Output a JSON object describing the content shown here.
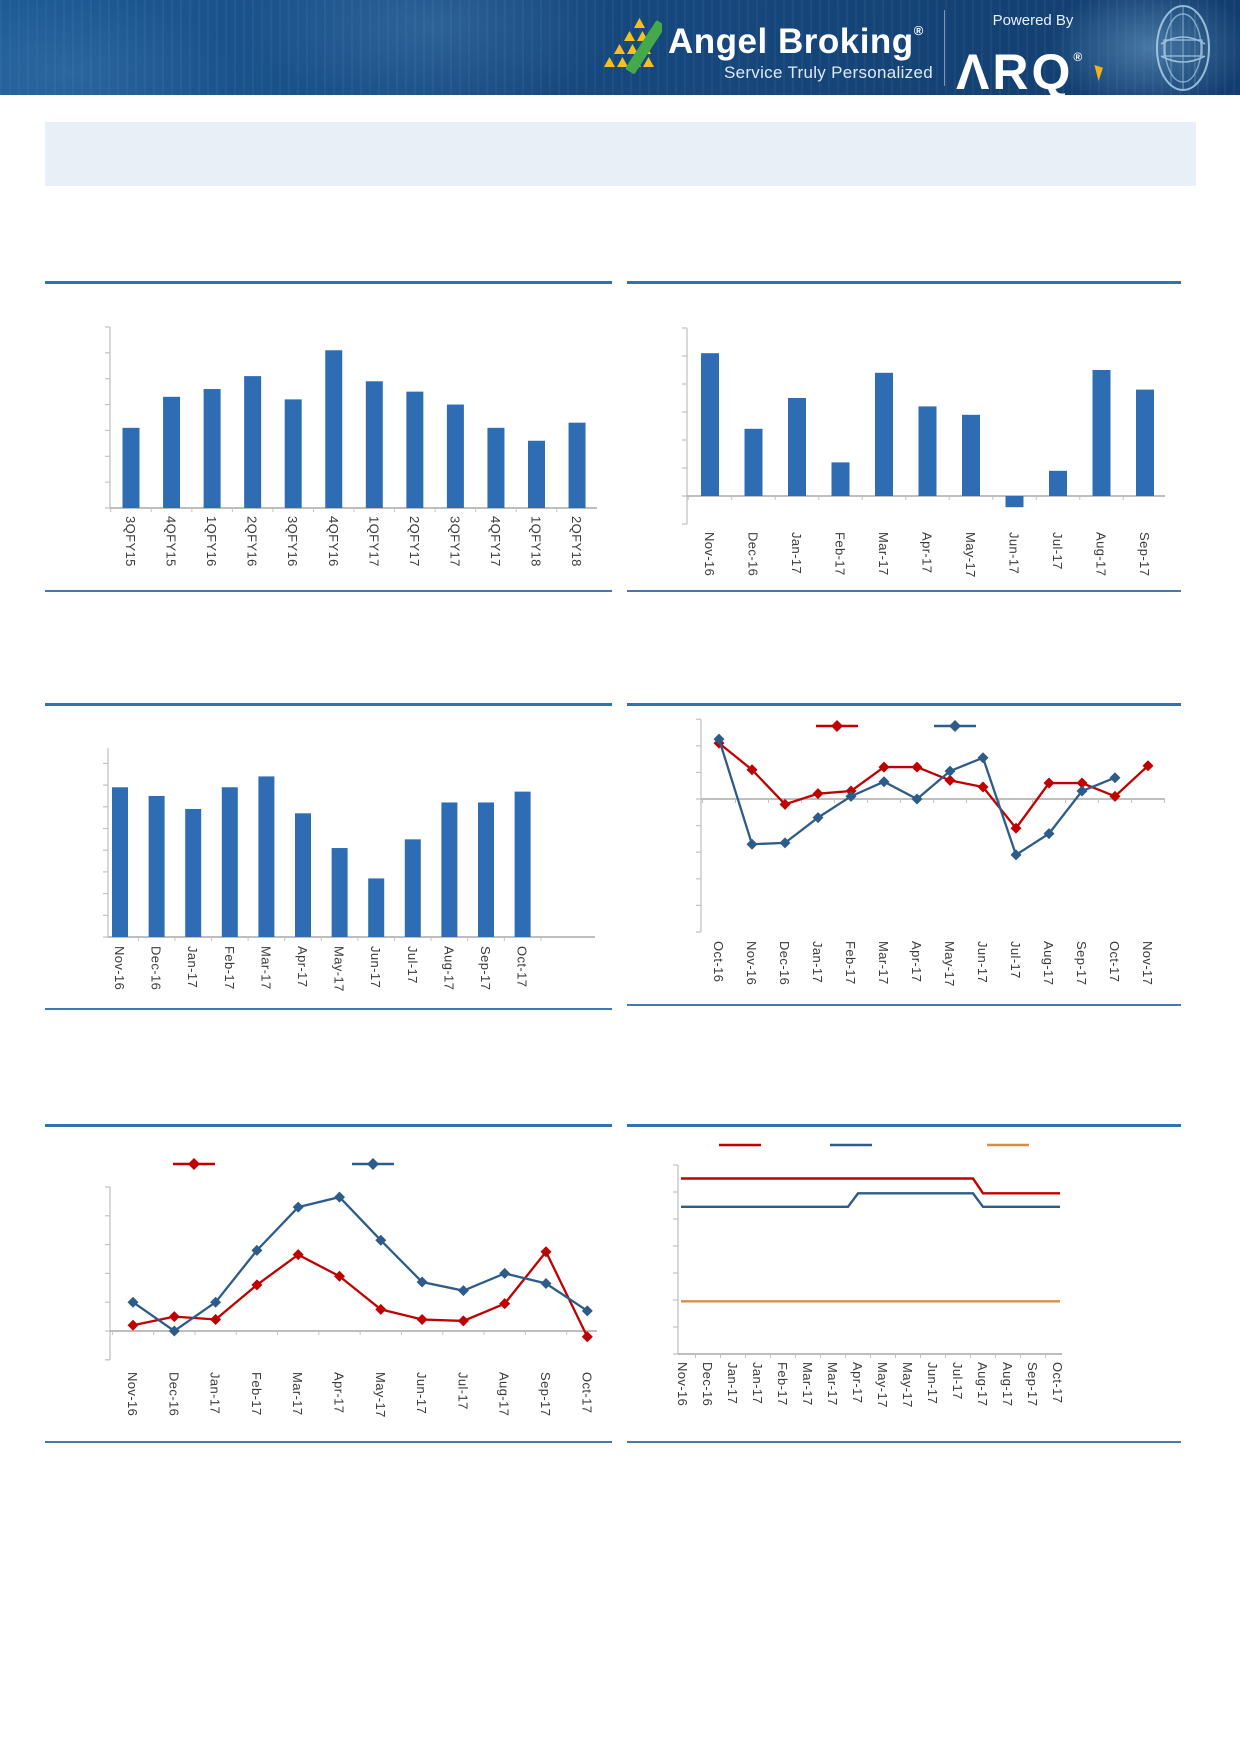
{
  "header": {
    "brand": "Angel Broking",
    "brand_reg": "®",
    "tagline": "Service Truly Personalized",
    "powered_by": "Powered By",
    "arq": "ΛRQ",
    "arq_reg": "®",
    "logo_yellow": "#f5c21b",
    "logo_green": "#44a949",
    "bg": "#174a80"
  },
  "banner": {
    "text": "",
    "bg": "#e9eff7"
  },
  "colors": {
    "bar_blue": "#2e6db4",
    "line_red": "#c00000",
    "line_navy": "#2d5c8a",
    "line_orange": "#d78e46",
    "separator_top": "#2e74b5",
    "separator_bottom": "#4379ae",
    "axis_gray": "#c2c2c2",
    "zero_gray": "#a8a8a8",
    "label_text": "#3a3a3a"
  },
  "chart_data": [
    {
      "id": "c1",
      "type": "bar",
      "title": "",
      "categories": [
        "3QFY15",
        "4QFY15",
        "1QFY16",
        "2QFY16",
        "3QFY16",
        "4QFY16",
        "1QFY17",
        "2QFY17",
        "3QFY17",
        "4QFY17",
        "1QFY18",
        "2QFY18"
      ],
      "series": [
        {
          "name": "bars",
          "color": "#2e6db4",
          "values": [
            3.1,
            4.3,
            4.6,
            5.1,
            4.2,
            6.1,
            4.9,
            4.5,
            4.0,
            3.1,
            2.6,
            3.3
          ]
        }
      ],
      "ylim": [
        0,
        7
      ],
      "ytick_step": 1,
      "yticklabels_visible": false,
      "grid": false
    },
    {
      "id": "c2",
      "type": "bar",
      "title": "",
      "categories": [
        "Nov-16",
        "Dec-16",
        "Jan-17",
        "Feb-17",
        "Mar-17",
        "Apr-17",
        "May-17",
        "Jun-17",
        "Jul-17",
        "Aug-17",
        "Sep-17"
      ],
      "series": [
        {
          "name": "bars",
          "color": "#2e6db4",
          "values": [
            5.1,
            2.4,
            3.5,
            1.2,
            4.4,
            3.2,
            2.9,
            -0.4,
            0.9,
            4.5,
            3.8
          ]
        }
      ],
      "ylim": [
        -1,
        6
      ],
      "ytick_step": 1,
      "yticklabels_visible": false,
      "grid": false
    },
    {
      "id": "c3",
      "type": "bar",
      "title": "",
      "categories": [
        "Nov-16",
        "Dec-16",
        "Jan-17",
        "Feb-17",
        "Mar-17",
        "Apr-17",
        "May-17",
        "Jun-17",
        "Jul-17",
        "Aug-17",
        "Sep-17",
        "Oct-17"
      ],
      "series": [
        {
          "name": "bars",
          "color": "#2e6db4",
          "values": [
            6.9,
            6.5,
            5.9,
            6.9,
            7.4,
            5.7,
            4.1,
            2.7,
            4.5,
            6.2,
            6.2,
            6.7
          ]
        }
      ],
      "ylim": [
        0,
        8.7
      ],
      "ytick_step": 1,
      "yticklabels_visible": false,
      "grid": false
    },
    {
      "id": "c4",
      "type": "line",
      "title": "",
      "categories": [
        "Oct-16",
        "Nov-16",
        "Dec-16",
        "Jan-17",
        "Feb-17",
        "Mar-17",
        "Apr-17",
        "May-17",
        "Jun-17",
        "Jul-17",
        "Aug-17",
        "Sep-17",
        "Oct-17",
        "Nov-17"
      ],
      "series": [
        {
          "name": "series_red",
          "color": "#c00000",
          "marker": "diamond",
          "values": [
            2.1,
            1.1,
            -0.2,
            0.2,
            0.3,
            1.2,
            1.2,
            0.7,
            0.45,
            -1.1,
            0.6,
            0.6,
            0.1,
            1.25
          ]
        },
        {
          "name": "series_navy",
          "color": "#2d5c8a",
          "marker": "diamond",
          "values": [
            2.25,
            -1.7,
            -1.65,
            -0.7,
            0.1,
            0.65,
            0.0,
            1.05,
            1.55,
            -2.1,
            -1.3,
            0.3,
            0.8,
            null
          ]
        }
      ],
      "ylim": [
        -5,
        3
      ],
      "ytick_step": 1,
      "yticklabels_visible": false,
      "legend": {
        "position": "top",
        "labels_visible": false
      }
    },
    {
      "id": "c5",
      "type": "line",
      "title": "",
      "categories": [
        "Nov-16",
        "Dec-16",
        "Jan-17",
        "Feb-17",
        "Mar-17",
        "Apr-17",
        "May-17",
        "Jun-17",
        "Jul-17",
        "Aug-17",
        "Sep-17",
        "Oct-17"
      ],
      "series": [
        {
          "name": "series_red",
          "color": "#c00000",
          "marker": "diamond",
          "values": [
            0.2,
            0.5,
            0.4,
            1.6,
            2.65,
            1.9,
            0.75,
            0.4,
            0.35,
            0.95,
            2.75,
            -0.2
          ]
        },
        {
          "name": "series_navy",
          "color": "#2d5c8a",
          "marker": "diamond",
          "values": [
            1.0,
            0.0,
            1.0,
            2.8,
            4.3,
            4.65,
            3.15,
            1.7,
            1.4,
            2.0,
            1.65,
            0.7
          ]
        }
      ],
      "ylim": [
        -1,
        5
      ],
      "ytick_step": 1,
      "yticklabels_visible": false,
      "legend": {
        "position": "top",
        "labels_visible": false
      }
    },
    {
      "id": "c6",
      "type": "step",
      "title": "",
      "categories": [
        "Nov-16",
        "Dec-16",
        "Jan-17",
        "Jan-17",
        "Feb-17",
        "Mar-17",
        "Mar-17",
        "Apr-17",
        "May-17",
        "May-17",
        "Jun-17",
        "Jul-17",
        "Aug-17",
        "Aug-17",
        "Sep-17",
        "Oct-17"
      ],
      "series": [
        {
          "name": "series_red",
          "color": "#c00000",
          "marker": null,
          "values": [
            6.5,
            6.5,
            6.5,
            6.5,
            6.5,
            6.5,
            6.5,
            6.5,
            6.5,
            6.5,
            6.5,
            6.5,
            5.95,
            5.95,
            5.95,
            5.95
          ]
        },
        {
          "name": "series_navy",
          "color": "#2d5c8a",
          "marker": null,
          "values": [
            5.45,
            5.45,
            5.45,
            5.45,
            5.45,
            5.45,
            5.45,
            5.95,
            5.95,
            5.95,
            5.95,
            5.95,
            5.45,
            5.45,
            5.45,
            5.45
          ]
        },
        {
          "name": "series_orange",
          "color": "#d78e46",
          "marker": null,
          "values": [
            1.95,
            1.95,
            1.95,
            1.95,
            1.95,
            1.95,
            1.95,
            1.95,
            1.95,
            1.95,
            1.95,
            1.95,
            1.95,
            1.95,
            1.95,
            1.95
          ]
        }
      ],
      "ylim": [
        0,
        7
      ],
      "ytick_step": 1,
      "yticklabels_visible": false,
      "legend": {
        "position": "top",
        "labels_visible": false
      }
    }
  ]
}
